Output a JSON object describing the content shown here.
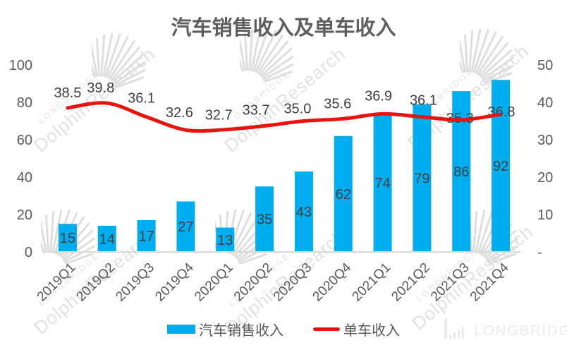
{
  "chart_data": {
    "type": "combo",
    "title": "汽车销售收入及单车收入",
    "categories": [
      "2019Q1",
      "2019Q2",
      "2019Q3",
      "2019Q4",
      "2020Q1",
      "2020Q2",
      "2020Q3",
      "2020Q4",
      "2021Q1",
      "2021Q2",
      "2021Q3",
      "2021Q4"
    ],
    "series": [
      {
        "name": "汽车销售收入",
        "type": "bar",
        "axis": "left",
        "color": "#00AEEF",
        "values": [
          15,
          14,
          17,
          27,
          13,
          35,
          43,
          62,
          74,
          79,
          86,
          92
        ],
        "labels": [
          "15",
          "14",
          "17",
          "27",
          "13",
          "35",
          "43",
          "62",
          "74",
          "79",
          "86",
          "92"
        ]
      },
      {
        "name": "单车收入",
        "type": "line",
        "axis": "right",
        "color": "#E8130C",
        "values": [
          38.5,
          39.8,
          36.1,
          32.6,
          32.7,
          33.7,
          35.0,
          35.6,
          36.9,
          36.1,
          35.3,
          36.8
        ],
        "labels": [
          "38.5",
          "39.8",
          "36.1",
          "32.6",
          "32.7",
          "33.7",
          "35.0",
          "35.6",
          "36.9",
          "36.1",
          "35.3",
          "36.8"
        ]
      }
    ],
    "left_axis": {
      "min": 0,
      "max": 100,
      "ticks": [
        0,
        20,
        40,
        60,
        80,
        100
      ],
      "tick_labels": [
        "0",
        "20",
        "40",
        "60",
        "80",
        "100"
      ]
    },
    "right_axis": {
      "min": 0,
      "max": 50,
      "ticks": [
        0,
        10,
        20,
        30,
        40,
        50
      ],
      "tick_labels": [
        "-",
        "10",
        "20",
        "30",
        "40",
        "50"
      ]
    },
    "grid": false,
    "legend_position": "bottom",
    "label_color": "#404040",
    "axis_text_color": "#595959",
    "axis_line_color": "#D9D9D9"
  },
  "watermark": {
    "brand_small": "LONGBRIDGE",
    "brand_big": "DolphinResearch"
  },
  "brand_footer": {
    "label": "LONGBRIDGE"
  }
}
